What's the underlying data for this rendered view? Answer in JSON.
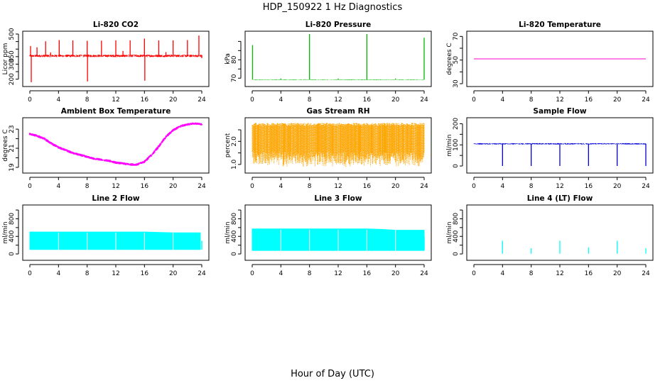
{
  "title": "HDP_150922  1 Hz Diagnostics",
  "xlabel": "Hour of Day (UTC)",
  "chart_data": [
    {
      "type": "line",
      "title": "Li-820 CO2",
      "ylabel": "Licor ppm",
      "color": "#ff0000",
      "xlim": [
        0,
        24
      ],
      "ylim": [
        170,
        500
      ],
      "xticks": [
        "0",
        "4",
        "8",
        "12",
        "16",
        "20",
        "24"
      ],
      "yticks": [
        200,
        250,
        300,
        350,
        400,
        450,
        500
      ],
      "yticklabels": [
        "200",
        "",
        "300",
        "350",
        "",
        "",
        "500"
      ],
      "series": [
        {
          "baseline": 355,
          "noise": 8,
          "spikes": [
            [
              0.1,
              420
            ],
            [
              0.2,
              180
            ],
            [
              1.0,
              412
            ],
            [
              2.2,
              452
            ],
            [
              2.9,
              378
            ],
            [
              4.1,
              460
            ],
            [
              6.0,
              458
            ],
            [
              8.0,
              455
            ],
            [
              8.05,
              185
            ],
            [
              10.0,
              456
            ],
            [
              12.0,
              458
            ],
            [
              13.0,
              388
            ],
            [
              14.0,
              458
            ],
            [
              16.0,
              470
            ],
            [
              16.05,
              190
            ],
            [
              18.0,
              458
            ],
            [
              19.0,
              380
            ],
            [
              20.0,
              458
            ],
            [
              22.0,
              460
            ],
            [
              23.6,
              490
            ],
            [
              24.0,
              340
            ]
          ]
        }
      ]
    },
    {
      "type": "line",
      "title": "Li-820 Pressure",
      "ylabel": "kPa",
      "color": "#00bb00",
      "xlim": [
        0,
        24
      ],
      "ylim": [
        67,
        94
      ],
      "xticks": [
        "0",
        "4",
        "8",
        "12",
        "16",
        "20",
        "24"
      ],
      "yticks": [
        70,
        75,
        80,
        85,
        90
      ],
      "yticklabels": [
        "70",
        "",
        "80",
        "",
        ""
      ],
      "series": [
        {
          "baseline": 69.2,
          "noise": 0.15,
          "spikes": [
            [
              0.05,
              88
            ],
            [
              4.0,
              69.8
            ],
            [
              8.0,
              94
            ],
            [
              12.0,
              69.8
            ],
            [
              16.0,
              94
            ],
            [
              20.0,
              69.8
            ],
            [
              24.0,
              92
            ]
          ]
        }
      ]
    },
    {
      "type": "line",
      "title": "Li-820 Temperature",
      "ylabel": "degrees C",
      "color": "#ff00cc",
      "xlim": [
        0,
        24
      ],
      "ylim": [
        30,
        72
      ],
      "xticks": [
        "0",
        "4",
        "8",
        "12",
        "16",
        "20",
        "24"
      ],
      "yticks": [
        30,
        40,
        50,
        60,
        70
      ],
      "yticklabels": [
        "30",
        "",
        "50",
        "",
        "70"
      ],
      "series": [
        {
          "x": [
            0,
            24
          ],
          "y": [
            51,
            51
          ]
        }
      ]
    },
    {
      "type": "line",
      "title": "Ambient Box Temperature",
      "ylabel": "degrees C",
      "color": "#ff00ff",
      "xlim": [
        0,
        24
      ],
      "ylim": [
        18.7,
        23.9
      ],
      "xticks": [
        "0",
        "4",
        "8",
        "12",
        "16",
        "20",
        "24"
      ],
      "yticks": [
        19,
        20,
        21,
        22,
        23
      ],
      "yticklabels": [
        "19",
        "",
        "21",
        "",
        "23"
      ],
      "series": [
        {
          "x": [
            0,
            1,
            2,
            3,
            4,
            5,
            6,
            7,
            8,
            9,
            10,
            11,
            12,
            13,
            14,
            15,
            16,
            17,
            18,
            19,
            20,
            21,
            22,
            23,
            24
          ],
          "y": [
            22.5,
            22.3,
            22.0,
            21.5,
            21.1,
            20.8,
            20.5,
            20.3,
            20.1,
            19.9,
            19.8,
            19.7,
            19.5,
            19.4,
            19.3,
            19.3,
            19.6,
            20.3,
            21.2,
            22.2,
            22.9,
            23.3,
            23.5,
            23.6,
            23.5
          ],
          "noise": 0.13
        }
      ]
    },
    {
      "type": "line",
      "title": "Gas Stream RH",
      "ylabel": "percent",
      "color": "#ffa500",
      "xlim": [
        0,
        24
      ],
      "ylim": [
        0.75,
        2.9
      ],
      "xticks": [
        "0",
        "4",
        "8",
        "12",
        "16",
        "20",
        "24"
      ],
      "yticks": [
        1.0,
        1.5,
        2.0,
        2.5
      ],
      "yticklabels": [
        "1.0",
        "",
        "2.0",
        ""
      ],
      "series": [
        {
          "band": [
            1.0,
            2.8
          ],
          "dip_min": 0.9
        }
      ]
    },
    {
      "type": "line",
      "title": "Sample Flow",
      "ylabel": "ml/min",
      "color": "#0000dd",
      "xlim": [
        0,
        24
      ],
      "ylim": [
        -20,
        215
      ],
      "xticks": [
        "0",
        "4",
        "8",
        "12",
        "16",
        "20",
        "24"
      ],
      "yticks": [
        0,
        50,
        100,
        150,
        200
      ],
      "yticklabels": [
        "0",
        "",
        "100",
        "",
        "200"
      ],
      "series": [
        {
          "baseline": 105,
          "noise": 3,
          "drops": [
            [
              4.0,
              0
            ],
            [
              8.0,
              0
            ],
            [
              12.0,
              0
            ],
            [
              16.0,
              0
            ],
            [
              20.0,
              0
            ],
            [
              24.0,
              0
            ]
          ]
        }
      ]
    },
    {
      "type": "area",
      "title": "Line 2 Flow",
      "ylabel": "ml/min",
      "color": "#00ffff",
      "xlim": [
        0,
        24
      ],
      "ylim": [
        -80,
        1050
      ],
      "xticks": [
        "0",
        "4",
        "8",
        "12",
        "16",
        "20",
        "24"
      ],
      "yticks": [
        0,
        200,
        400,
        600,
        800,
        1000
      ],
      "yticklabels": [
        "0",
        "",
        "400",
        "",
        "800",
        ""
      ],
      "series": [
        {
          "x": [
            0,
            4,
            8,
            12,
            16,
            20,
            23.8
          ],
          "upper": [
            500,
            500,
            500,
            500,
            500,
            480,
            480
          ],
          "lower": 100,
          "gaps": [
            4,
            8,
            12,
            16,
            20
          ],
          "tail": [
            [
              24.0,
              300
            ]
          ]
        }
      ]
    },
    {
      "type": "area",
      "title": "Line 3 Flow",
      "ylabel": "ml/min",
      "color": "#00ffff",
      "xlim": [
        0,
        24
      ],
      "ylim": [
        -80,
        1050
      ],
      "xticks": [
        "0",
        "4",
        "8",
        "12",
        "16",
        "20",
        "24"
      ],
      "yticks": [
        0,
        200,
        400,
        600,
        800,
        1000
      ],
      "yticklabels": [
        "0",
        "",
        "400",
        "",
        "800",
        ""
      ],
      "series": [
        {
          "x": [
            0,
            4,
            8,
            12,
            16,
            18,
            20,
            24
          ],
          "upper": [
            570,
            570,
            570,
            570,
            570,
            560,
            540,
            540
          ],
          "lower": 80,
          "gaps": [
            4,
            8,
            12,
            16,
            20
          ],
          "tail": [
            [
              24.0,
              400
            ]
          ]
        }
      ]
    },
    {
      "type": "line",
      "title": "Line 4 (LT) Flow",
      "ylabel": "ml/min",
      "color": "#00ffff",
      "xlim": [
        0,
        24
      ],
      "ylim": [
        -80,
        1050
      ],
      "xticks": [
        "0",
        "4",
        "8",
        "12",
        "16",
        "20",
        "24"
      ],
      "yticks": [
        0,
        200,
        400,
        600,
        800,
        1000
      ],
      "yticklabels": [
        "0",
        "",
        "400",
        "",
        "800",
        ""
      ],
      "series": [
        {
          "baseline": 5,
          "spikes": [
            [
              4.0,
              300
            ],
            [
              8.0,
              130
            ],
            [
              12.0,
              300
            ],
            [
              16.0,
              150
            ],
            [
              20.0,
              300
            ],
            [
              24.0,
              130
            ]
          ]
        }
      ]
    }
  ]
}
